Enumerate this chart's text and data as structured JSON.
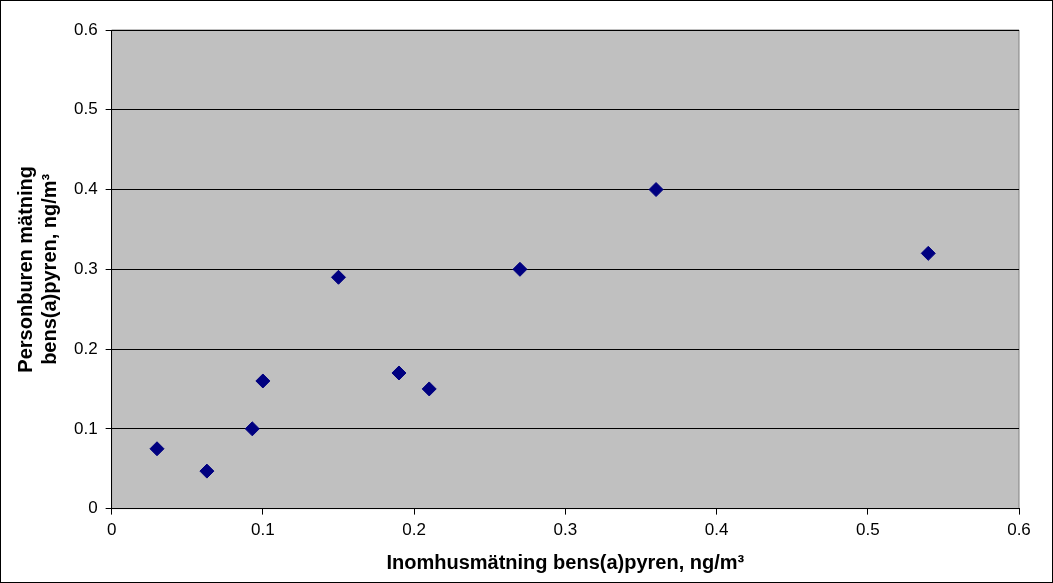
{
  "chart_data": {
    "type": "scatter",
    "xlabel": "Inomhusmätning bens(a)pyren, ng/m³",
    "ylabel": "Personburen mätning\nbens(a)pyren, ng/m³",
    "x": [
      0.03,
      0.063,
      0.093,
      0.1,
      0.15,
      0.19,
      0.21,
      0.27,
      0.36,
      0.54
    ],
    "series": [
      {
        "color": "#000080",
        "values": [
          0.075,
          0.047,
          0.1,
          0.16,
          0.29,
          0.17,
          0.15,
          0.3,
          0.4,
          0.32
        ]
      }
    ],
    "xlim": [
      0,
      0.6
    ],
    "xticks": [
      0,
      0.1,
      0.2,
      0.3,
      0.4,
      0.5,
      0.6
    ],
    "ylim": [
      0,
      0.6
    ],
    "yticks": [
      0,
      0.1,
      0.2,
      0.3,
      0.4,
      0.5,
      0.6
    ],
    "grid": "y",
    "legend": false,
    "marker": "diamond"
  }
}
